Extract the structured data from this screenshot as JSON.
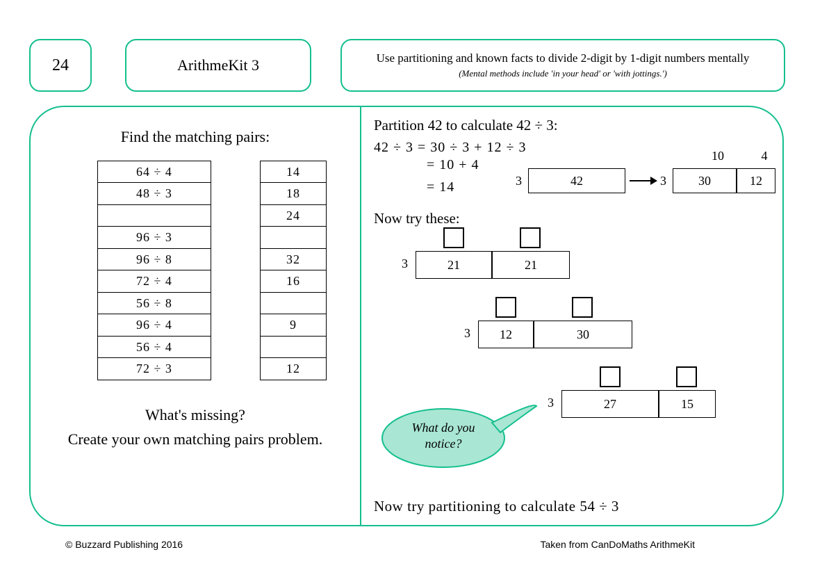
{
  "colors": {
    "accent": "#14bf8e",
    "bubble_fill": "#a9e6d3",
    "black": "#000000"
  },
  "header": {
    "page_number": "24",
    "kit_name": "ArithmeKit 3",
    "objective": "Use partitioning and known facts to divide 2-digit by 1-digit numbers mentally",
    "objective_sub": "(Mental methods include 'in your head' or 'with jottings.')"
  },
  "left_panel": {
    "title": "Find the matching pairs:",
    "col1": [
      "64 ÷ 4",
      "48 ÷ 3",
      "",
      "96 ÷ 3",
      "96 ÷ 8",
      "72 ÷ 4",
      "56 ÷ 8",
      "96 ÷ 4",
      "56 ÷ 4",
      "72 ÷ 3"
    ],
    "col2": [
      "14",
      "18",
      "24",
      "",
      "32",
      "16",
      "",
      "9",
      "",
      "12"
    ],
    "sub1": "What's missing?",
    "sub2": "Create your own matching pairs problem."
  },
  "right_panel": {
    "intro": "Partition 42 to calculate 42 ÷ 3:",
    "working": {
      "line1": "42 ÷ 3 = 30 ÷ 3 + 12 ÷ 3",
      "line2_prefix": "= 10 + 4",
      "line3_prefix": "= 14"
    },
    "bar_example": {
      "top_left": "10",
      "top_right": "4",
      "left_divisor": "3",
      "whole": "42",
      "right_divisor": "3",
      "part1": "30",
      "part2": "12"
    },
    "now_try": "Now try these:",
    "diagrams": [
      {
        "divisor": "3",
        "parts": [
          "21",
          "21"
        ],
        "widths": [
          110,
          110
        ]
      },
      {
        "divisor": "3",
        "parts": [
          "12",
          "30"
        ],
        "widths": [
          80,
          140
        ]
      },
      {
        "divisor": "3",
        "parts": [
          "27",
          "15"
        ],
        "widths": [
          140,
          80
        ]
      }
    ],
    "bubble": "What do you\nnotice?",
    "final": "Now try partitioning to calculate 54 ÷ 3"
  },
  "footer": {
    "left": "© Buzzard Publishing 2016",
    "right": "Taken from CanDoMaths ArithmeKit"
  }
}
